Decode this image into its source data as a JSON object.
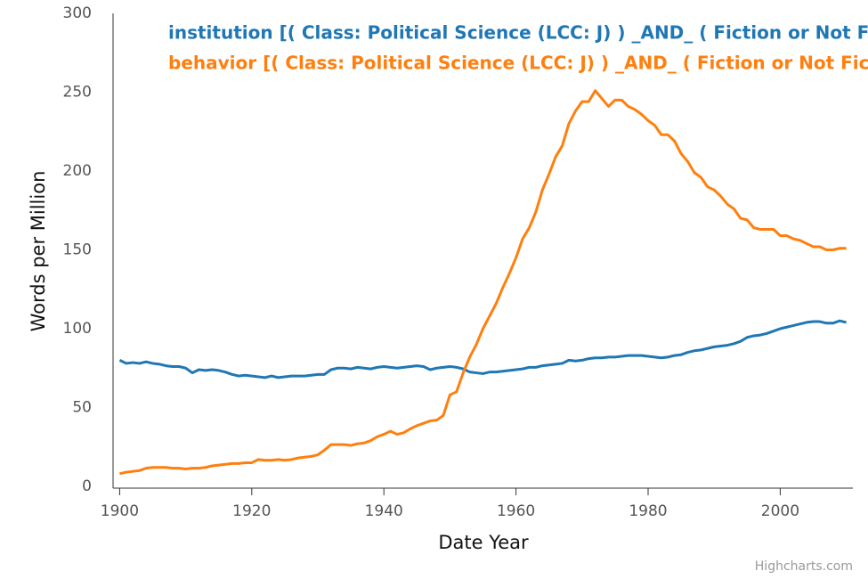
{
  "chart_data": {
    "type": "line",
    "series": [
      {
        "name": "institution [( Class: Political Science (LCC: J) ) _AND_ ( Fiction or Not Fict",
        "color": "#1f77b4",
        "values": [
          80,
          78,
          78.5,
          78,
          79,
          78,
          77.5,
          76.5,
          76,
          76,
          75,
          72,
          74,
          73.5,
          74,
          73.5,
          72.5,
          71,
          70,
          70.5,
          70,
          69.5,
          69,
          70,
          69,
          69.5,
          70,
          70,
          70,
          70.5,
          71,
          71,
          74,
          75,
          75,
          74.5,
          75.5,
          75,
          74.5,
          75.5,
          76,
          75.5,
          75,
          75.5,
          76,
          76.5,
          76,
          74,
          75,
          75.5,
          76,
          75.5,
          74.5,
          72.5,
          72,
          71.5,
          72.5,
          72.5,
          73,
          73.5,
          74,
          74.5,
          75.5,
          75.5,
          76.5,
          77,
          77.5,
          78,
          80,
          79.5,
          80,
          81,
          81.5,
          81.5,
          82,
          82,
          82.5,
          83,
          83,
          83,
          82.5,
          82,
          81.5,
          82,
          83,
          83.5,
          85,
          86,
          86.5,
          87.5,
          88.5,
          89,
          89.5,
          90.5,
          92,
          94.5,
          95.5,
          96,
          97,
          98.5,
          100,
          101,
          102,
          103,
          104,
          104.5,
          104.5,
          103.5,
          103.5,
          105,
          104
        ]
      },
      {
        "name": "behavior [( Class: Political Science (LCC: J) ) _AND_ ( Fiction or Not Fictio",
        "color": "#ff7f0e",
        "values": [
          8,
          9,
          9.5,
          10,
          11.5,
          12,
          12,
          12,
          11.5,
          11.5,
          11,
          11.5,
          11.5,
          12,
          13,
          13.5,
          14,
          14.5,
          14.5,
          15,
          15,
          17,
          16.5,
          16.5,
          17,
          16.5,
          17,
          18,
          18.5,
          19,
          20,
          23,
          26.5,
          26.5,
          26.5,
          26,
          27,
          27.5,
          29,
          31.5,
          33,
          35,
          33,
          34,
          36.5,
          38.5,
          40,
          41.5,
          42,
          45,
          58,
          60,
          72,
          82,
          90,
          100,
          108,
          116,
          126,
          135,
          145,
          157,
          164,
          174,
          188,
          198,
          209,
          216,
          230,
          238,
          244,
          244,
          251,
          246,
          241,
          245,
          245,
          241,
          239,
          236,
          232,
          229,
          223,
          223,
          219,
          211,
          206,
          199,
          196,
          190,
          188,
          184,
          179,
          176,
          170,
          169,
          164,
          163,
          163,
          163,
          159,
          159,
          157,
          156,
          154,
          152,
          152,
          150,
          150,
          151,
          151
        ]
      }
    ],
    "x": [
      1900,
      1901,
      1902,
      1903,
      1904,
      1905,
      1906,
      1907,
      1908,
      1909,
      1910,
      1911,
      1912,
      1913,
      1914,
      1915,
      1916,
      1917,
      1918,
      1919,
      1920,
      1921,
      1922,
      1923,
      1924,
      1925,
      1926,
      1927,
      1928,
      1929,
      1930,
      1931,
      1932,
      1933,
      1934,
      1935,
      1936,
      1937,
      1938,
      1939,
      1940,
      1941,
      1942,
      1943,
      1944,
      1945,
      1946,
      1947,
      1948,
      1949,
      1950,
      1951,
      1952,
      1953,
      1954,
      1955,
      1956,
      1957,
      1958,
      1959,
      1960,
      1961,
      1962,
      1963,
      1964,
      1965,
      1966,
      1967,
      1968,
      1969,
      1970,
      1971,
      1972,
      1973,
      1974,
      1975,
      1976,
      1977,
      1978,
      1979,
      1980,
      1981,
      1982,
      1983,
      1984,
      1985,
      1986,
      1987,
      1988,
      1989,
      1990,
      1991,
      1992,
      1993,
      1994,
      1995,
      1996,
      1997,
      1998,
      1999,
      2000,
      2001,
      2002,
      2003,
      2004,
      2005,
      2006,
      2007,
      2008,
      2009,
      2010
    ],
    "xlim": [
      1899,
      2011
    ],
    "xticks": [
      1900,
      1920,
      1940,
      1960,
      1980,
      2000
    ],
    "ylim": [
      0,
      300
    ],
    "yticks": [
      0,
      50,
      100,
      150,
      200,
      250,
      300
    ],
    "x_label": "Date Year",
    "y_label": "Words per Million",
    "credit": "Highcharts.com",
    "grid": false
  }
}
